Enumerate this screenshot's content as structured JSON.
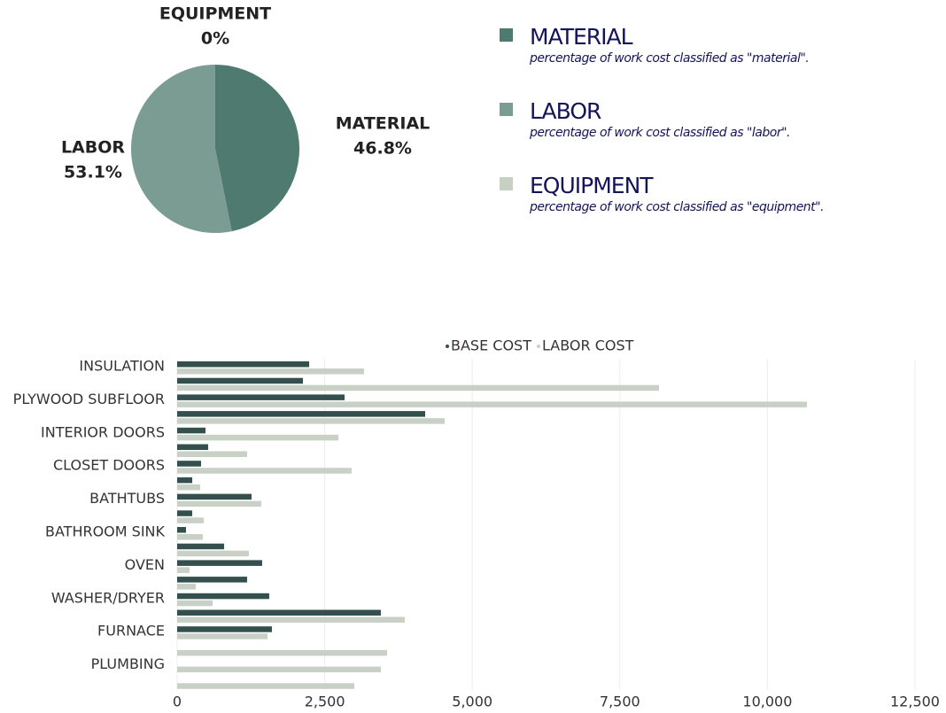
{
  "chart_data": [
    {
      "type": "pie",
      "categories": [
        "MATERIAL",
        "LABOR",
        "EQUIPMENT"
      ],
      "values": [
        46.8,
        53.1,
        0
      ],
      "value_labels": [
        "46.8%",
        "53.1%",
        "0%"
      ],
      "colors": [
        "#4f7a6f",
        "#7a9c93",
        "#c8d0c6"
      ],
      "legend_descriptions": [
        "percentage of work cost classified as \"material\".",
        "percentage of work cost classified as \"labor\".",
        "percentage of work cost classified as \"equipment\"."
      ]
    },
    {
      "type": "hbar",
      "categories": [
        "INSULATION",
        null,
        "PLYWOOD SUBFLOOR",
        null,
        "INTERIOR DOORS",
        null,
        "CLOSET DOORS",
        null,
        "BATHTUBS",
        null,
        "BATHROOM SINK",
        null,
        "OVEN",
        null,
        "WASHER/DRYER",
        null,
        "FURNACE",
        null,
        "PLUMBING",
        null
      ],
      "series": [
        {
          "name": "BASE COST",
          "color": "#34504c",
          "values": [
            2236,
            2131,
            2836,
            4202,
            480,
            525,
            405,
            255,
            1260,
            255,
            150,
            795,
            1440,
            1185,
            1560,
            3451,
            1605,
            0,
            0,
            0
          ]
        },
        {
          "name": "LABOR COST",
          "color": "#c9d1c6",
          "values": [
            3166,
            8163,
            10669,
            4532,
            2731,
            1185,
            2956,
            390,
            1425,
            450,
            435,
            1215,
            210,
            315,
            600,
            3856,
            1530,
            3556,
            3451,
            3001
          ]
        }
      ],
      "xlim": [
        0,
        12500
      ],
      "xticks": [
        0,
        {
          "value": 2500,
          "label": "2,500"
        },
        {
          "value": 5000,
          "label": "5,000"
        },
        {
          "value": 7500,
          "label": "7,500"
        },
        {
          "value": 10000,
          "label": "10,000"
        },
        {
          "value": 12500,
          "label": "12,500"
        }
      ],
      "grid": true
    }
  ]
}
